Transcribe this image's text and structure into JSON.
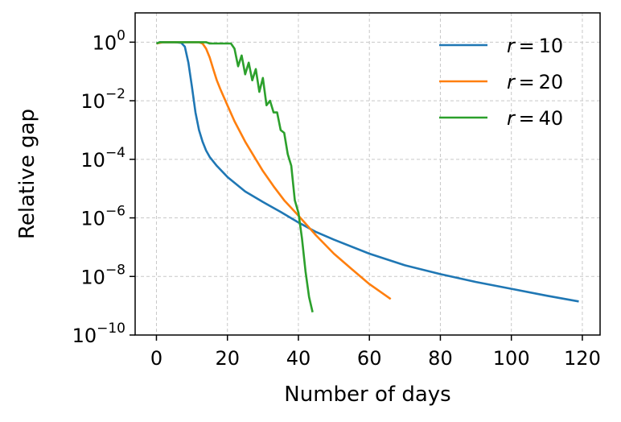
{
  "chart_data": {
    "type": "line",
    "title": "",
    "xlabel": "Number of days",
    "ylabel": "Relative gap",
    "xlim": [
      -6,
      125
    ],
    "xticks": [
      0,
      20,
      40,
      60,
      80,
      100,
      120
    ],
    "y_scale": "log",
    "ylim_log10": [
      -10,
      1
    ],
    "ytick_exponents": [
      0,
      -2,
      -4,
      -6,
      -8,
      -10
    ],
    "ytick_base": "10",
    "grid": true,
    "legend_position": "top-right",
    "series": [
      {
        "name": "r = 10",
        "var": "r",
        "value": "10",
        "color": "#1f77b4",
        "points": [
          [
            0,
            0.9
          ],
          [
            1,
            1.0
          ],
          [
            3,
            1.0
          ],
          [
            5,
            1.0
          ],
          [
            6,
            0.98
          ],
          [
            7,
            0.95
          ],
          [
            8,
            0.7
          ],
          [
            9,
            0.2
          ],
          [
            10,
            0.03
          ],
          [
            11,
            0.004
          ],
          [
            12,
            0.001
          ],
          [
            13,
            0.0004
          ],
          [
            14,
            0.0002
          ],
          [
            15,
            0.00012
          ],
          [
            17,
            6e-05
          ],
          [
            20,
            2.5e-05
          ],
          [
            25,
            8e-06
          ],
          [
            30,
            3.5e-06
          ],
          [
            35,
            1.6e-06
          ],
          [
            40,
            7e-07
          ],
          [
            45,
            3.3e-07
          ],
          [
            50,
            1.8e-07
          ],
          [
            60,
            6e-08
          ],
          [
            70,
            2.4e-08
          ],
          [
            80,
            1.2e-08
          ],
          [
            90,
            6.5e-09
          ],
          [
            100,
            3.8e-09
          ],
          [
            110,
            2.2e-09
          ],
          [
            119,
            1.4e-09
          ]
        ]
      },
      {
        "name": "r = 20",
        "var": "r",
        "value": "20",
        "color": "#ff7f0e",
        "points": [
          [
            0,
            0.9
          ],
          [
            2,
            1.0
          ],
          [
            10,
            1.0
          ],
          [
            12,
            1.0
          ],
          [
            13,
            0.9
          ],
          [
            14,
            0.6
          ],
          [
            15,
            0.3
          ],
          [
            16,
            0.12
          ],
          [
            17,
            0.05
          ],
          [
            18,
            0.025
          ],
          [
            20,
            0.007
          ],
          [
            22,
            0.002
          ],
          [
            25,
            0.0004
          ],
          [
            28,
            0.0001
          ],
          [
            30,
            4e-05
          ],
          [
            33,
            1.2e-05
          ],
          [
            36,
            4e-06
          ],
          [
            40,
            1.2e-06
          ],
          [
            45,
            2.5e-07
          ],
          [
            50,
            6e-08
          ],
          [
            55,
            1.8e-08
          ],
          [
            60,
            5.5e-09
          ],
          [
            66,
            1.7e-09
          ]
        ]
      },
      {
        "name": "r = 40",
        "var": "r",
        "value": "40",
        "color": "#2ca02c",
        "points": [
          [
            0,
            0.9
          ],
          [
            1,
            1.0
          ],
          [
            5,
            1.0
          ],
          [
            10,
            1.0
          ],
          [
            14,
            1.0
          ],
          [
            15,
            0.9
          ],
          [
            20,
            0.9
          ],
          [
            21,
            0.9
          ],
          [
            22,
            0.6
          ],
          [
            23,
            0.15
          ],
          [
            24,
            0.35
          ],
          [
            25,
            0.08
          ],
          [
            26,
            0.2
          ],
          [
            27,
            0.05
          ],
          [
            28,
            0.12
          ],
          [
            29,
            0.02
          ],
          [
            30,
            0.06
          ],
          [
            31,
            0.007
          ],
          [
            32,
            0.01
          ],
          [
            33,
            0.004
          ],
          [
            34,
            0.004
          ],
          [
            35,
            0.001
          ],
          [
            36,
            0.0008
          ],
          [
            37,
            0.00015
          ],
          [
            38,
            6e-05
          ],
          [
            39,
            4e-06
          ],
          [
            40,
            1.5e-06
          ],
          [
            41,
            2e-07
          ],
          [
            42,
            1.5e-08
          ],
          [
            43,
            2e-09
          ],
          [
            44,
            6e-10
          ]
        ]
      }
    ]
  }
}
